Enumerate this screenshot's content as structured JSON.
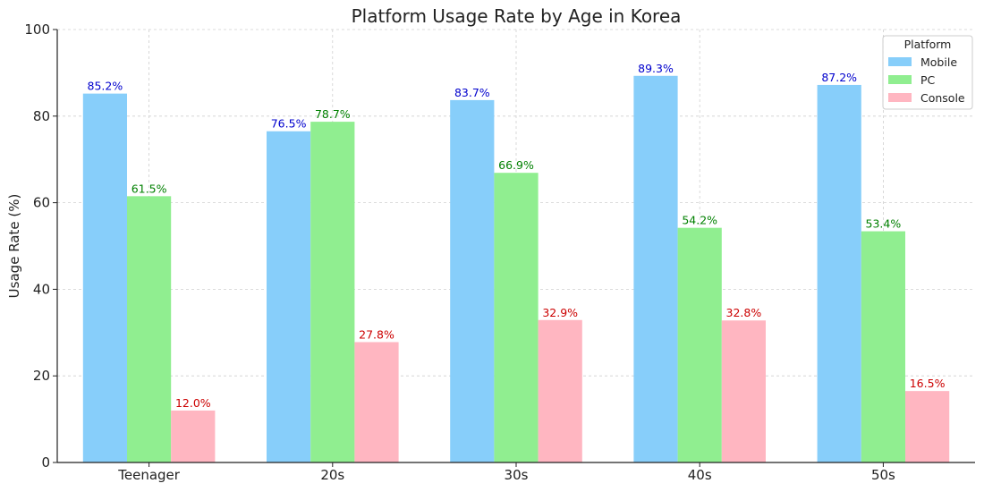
{
  "chart_data": {
    "type": "bar",
    "title": "Platform Usage Rate by Age in Korea",
    "xlabel": "",
    "ylabel": "Usage Rate (%)",
    "ylim": [
      0,
      100
    ],
    "yticks": [
      0,
      20,
      40,
      60,
      80,
      100
    ],
    "categories": [
      "Teenager",
      "20s",
      "30s",
      "40s",
      "50s"
    ],
    "series": [
      {
        "name": "Mobile",
        "values": [
          85.2,
          76.5,
          83.7,
          89.3,
          87.2
        ],
        "color": "#87CEFA",
        "label_color": "#0000CD"
      },
      {
        "name": "PC",
        "values": [
          61.5,
          78.7,
          66.9,
          54.2,
          53.4
        ],
        "color": "#90EE90",
        "label_color": "#008000"
      },
      {
        "name": "Console",
        "values": [
          12.0,
          27.8,
          32.9,
          32.8,
          16.5
        ],
        "color": "#FFB6C1",
        "label_color": "#CC0000"
      }
    ],
    "value_suffix": "%",
    "grid": true,
    "legend": {
      "title": "Platform",
      "position": "top-right"
    }
  }
}
